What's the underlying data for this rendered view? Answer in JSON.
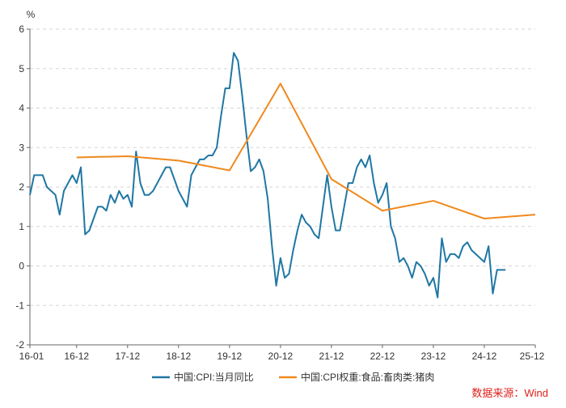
{
  "chart_data": {
    "type": "line",
    "y_unit": "%",
    "ylim": [
      -2,
      6
    ],
    "yticks": [
      -2,
      -1,
      0,
      1,
      2,
      3,
      4,
      5,
      6
    ],
    "xlim": [
      "2016-01",
      "2025-12"
    ],
    "xticks": [
      "16-01",
      "16-12",
      "17-12",
      "18-12",
      "19-12",
      "20-12",
      "21-12",
      "22-12",
      "23-12",
      "24-12",
      "25-12"
    ],
    "grid": "horizontal-dashed",
    "legend_position": "bottom",
    "series": [
      {
        "name": "中国:CPI:当月同比",
        "color": "#1f77a4",
        "points": [
          [
            "2016-01",
            1.8
          ],
          [
            "2016-02",
            2.3
          ],
          [
            "2016-03",
            2.3
          ],
          [
            "2016-04",
            2.3
          ],
          [
            "2016-05",
            2.0
          ],
          [
            "2016-06",
            1.9
          ],
          [
            "2016-07",
            1.8
          ],
          [
            "2016-08",
            1.3
          ],
          [
            "2016-09",
            1.9
          ],
          [
            "2016-10",
            2.1
          ],
          [
            "2016-11",
            2.3
          ],
          [
            "2016-12",
            2.1
          ],
          [
            "2017-01",
            2.5
          ],
          [
            "2017-02",
            0.8
          ],
          [
            "2017-03",
            0.9
          ],
          [
            "2017-04",
            1.2
          ],
          [
            "2017-05",
            1.5
          ],
          [
            "2017-06",
            1.5
          ],
          [
            "2017-07",
            1.4
          ],
          [
            "2017-08",
            1.8
          ],
          [
            "2017-09",
            1.6
          ],
          [
            "2017-10",
            1.9
          ],
          [
            "2017-11",
            1.7
          ],
          [
            "2017-12",
            1.8
          ],
          [
            "2018-01",
            1.5
          ],
          [
            "2018-02",
            2.9
          ],
          [
            "2018-03",
            2.1
          ],
          [
            "2018-04",
            1.8
          ],
          [
            "2018-05",
            1.8
          ],
          [
            "2018-06",
            1.9
          ],
          [
            "2018-07",
            2.1
          ],
          [
            "2018-08",
            2.3
          ],
          [
            "2018-09",
            2.5
          ],
          [
            "2018-10",
            2.5
          ],
          [
            "2018-11",
            2.2
          ],
          [
            "2018-12",
            1.9
          ],
          [
            "2019-01",
            1.7
          ],
          [
            "2019-02",
            1.5
          ],
          [
            "2019-03",
            2.3
          ],
          [
            "2019-04",
            2.5
          ],
          [
            "2019-05",
            2.7
          ],
          [
            "2019-06",
            2.7
          ],
          [
            "2019-07",
            2.8
          ],
          [
            "2019-08",
            2.8
          ],
          [
            "2019-09",
            3.0
          ],
          [
            "2019-10",
            3.8
          ],
          [
            "2019-11",
            4.5
          ],
          [
            "2019-12",
            4.5
          ],
          [
            "2020-01",
            5.4
          ],
          [
            "2020-02",
            5.2
          ],
          [
            "2020-03",
            4.3
          ],
          [
            "2020-04",
            3.3
          ],
          [
            "2020-05",
            2.4
          ],
          [
            "2020-06",
            2.5
          ],
          [
            "2020-07",
            2.7
          ],
          [
            "2020-08",
            2.4
          ],
          [
            "2020-09",
            1.7
          ],
          [
            "2020-10",
            0.5
          ],
          [
            "2020-11",
            -0.5
          ],
          [
            "2020-12",
            0.2
          ],
          [
            "2021-01",
            -0.3
          ],
          [
            "2021-02",
            -0.2
          ],
          [
            "2021-03",
            0.4
          ],
          [
            "2021-04",
            0.9
          ],
          [
            "2021-05",
            1.3
          ],
          [
            "2021-06",
            1.1
          ],
          [
            "2021-07",
            1.0
          ],
          [
            "2021-08",
            0.8
          ],
          [
            "2021-09",
            0.7
          ],
          [
            "2021-10",
            1.5
          ],
          [
            "2021-11",
            2.3
          ],
          [
            "2021-12",
            1.5
          ],
          [
            "2022-01",
            0.9
          ],
          [
            "2022-02",
            0.9
          ],
          [
            "2022-03",
            1.5
          ],
          [
            "2022-04",
            2.1
          ],
          [
            "2022-05",
            2.1
          ],
          [
            "2022-06",
            2.5
          ],
          [
            "2022-07",
            2.7
          ],
          [
            "2022-08",
            2.5
          ],
          [
            "2022-09",
            2.8
          ],
          [
            "2022-10",
            2.1
          ],
          [
            "2022-11",
            1.6
          ],
          [
            "2022-12",
            1.8
          ],
          [
            "2023-01",
            2.1
          ],
          [
            "2023-02",
            1.0
          ],
          [
            "2023-03",
            0.7
          ],
          [
            "2023-04",
            0.1
          ],
          [
            "2023-05",
            0.2
          ],
          [
            "2023-06",
            0.0
          ],
          [
            "2023-07",
            -0.3
          ],
          [
            "2023-08",
            0.1
          ],
          [
            "2023-09",
            0.0
          ],
          [
            "2023-10",
            -0.2
          ],
          [
            "2023-11",
            -0.5
          ],
          [
            "2023-12",
            -0.3
          ],
          [
            "2024-01",
            -0.8
          ],
          [
            "2024-02",
            0.7
          ],
          [
            "2024-03",
            0.1
          ],
          [
            "2024-04",
            0.3
          ],
          [
            "2024-05",
            0.3
          ],
          [
            "2024-06",
            0.2
          ],
          [
            "2024-07",
            0.5
          ],
          [
            "2024-08",
            0.6
          ],
          [
            "2024-09",
            0.4
          ],
          [
            "2024-10",
            0.3
          ],
          [
            "2024-11",
            0.2
          ],
          [
            "2024-12",
            0.1
          ],
          [
            "2025-01",
            0.5
          ],
          [
            "2025-02",
            -0.7
          ],
          [
            "2025-03",
            -0.1
          ],
          [
            "2025-04",
            -0.1
          ],
          [
            "2025-05",
            -0.1
          ]
        ]
      },
      {
        "name": "中国:CPI权重:食品:畜肉类:猪肉",
        "color": "#f0891d",
        "points": [
          [
            "2016-12",
            2.75
          ],
          [
            "2017-12",
            2.78
          ],
          [
            "2018-12",
            2.67
          ],
          [
            "2019-12",
            2.42
          ],
          [
            "2020-12",
            4.62
          ],
          [
            "2021-12",
            2.2
          ],
          [
            "2022-12",
            1.4
          ],
          [
            "2023-12",
            1.65
          ],
          [
            "2024-12",
            1.2
          ],
          [
            "2025-12",
            1.3
          ]
        ]
      }
    ]
  },
  "source_label": "数据来源：Wind"
}
